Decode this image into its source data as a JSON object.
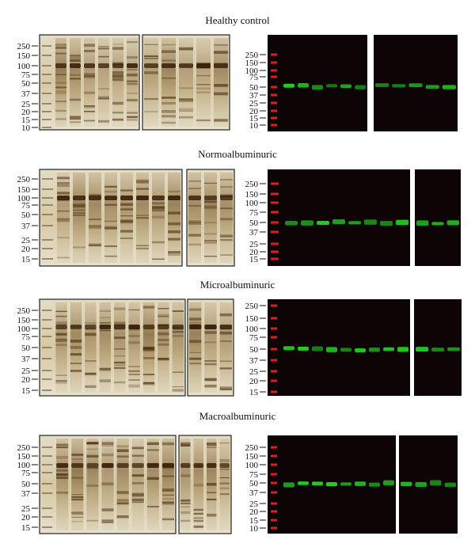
{
  "figure": {
    "panels": [
      {
        "title": "Healthy control",
        "silver_markers": [
          "250",
          "150",
          "100",
          "75",
          "50",
          "37",
          "25",
          "20",
          "15",
          "10"
        ],
        "western_markers": [
          "250",
          "150",
          "100",
          "75",
          "50",
          "37",
          "25",
          "20",
          "15",
          "10"
        ]
      },
      {
        "title": "Normoalbuminuric",
        "silver_markers": [
          "250",
          "150",
          "100",
          "75",
          "50",
          "37",
          "25",
          "20",
          "15"
        ],
        "western_markers": [
          "250",
          "150",
          "100",
          "75",
          "50",
          "37",
          "25",
          "20",
          "15"
        ]
      },
      {
        "title": "Microalbuminuric",
        "silver_markers": [
          "250",
          "150",
          "100",
          "75",
          "50",
          "37",
          "25",
          "20",
          "15"
        ],
        "western_markers": [
          "250",
          "150",
          "100",
          "75",
          "50",
          "37",
          "25",
          "20",
          "15"
        ]
      },
      {
        "title": "Macroalbuminuric",
        "silver_markers": [
          "250",
          "150",
          "100",
          "75",
          "50",
          "37",
          "25",
          "20",
          "15"
        ],
        "western_markers": [
          "250",
          "150",
          "100",
          "75",
          "50",
          "37",
          "25",
          "20",
          "15",
          "10"
        ]
      }
    ],
    "colors": {
      "silver_bg": "#d9cfb3",
      "silver_band": "#4a3012",
      "western_bg": "#0d0505",
      "marker_red": "#d92020",
      "band_green": "#22d422"
    }
  }
}
